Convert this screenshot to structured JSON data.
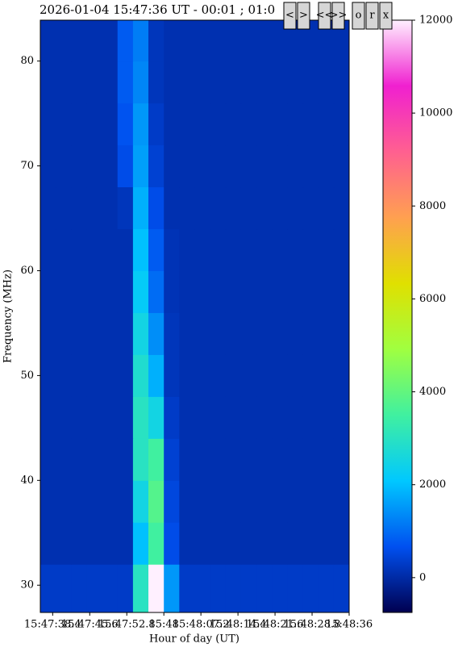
{
  "chart_data": {
    "type": "heatmap",
    "title": "2026-01-04 15:47:36 UT - 00:01 ; 01:0",
    "buttons": [
      "<",
      ">",
      "<<",
      ">>",
      "o",
      "r",
      "x"
    ],
    "xlabel": "Hour of day (UT)",
    "ylabel": "Frequency (MHz)",
    "xlim": [
      56856,
      56916
    ],
    "xticks": [
      {
        "value": 56858.4,
        "label": "15:47:38.4"
      },
      {
        "value": 56865.6,
        "label": "15:47:45.6"
      },
      {
        "value": 56872.8,
        "label": "15:47:52.8"
      },
      {
        "value": 56880,
        "label": "15:48"
      },
      {
        "value": 56887.2,
        "label": "15:48:07.2"
      },
      {
        "value": 56894.4,
        "label": "15:48:14.4"
      },
      {
        "value": 56901.6,
        "label": "15:48:21.6"
      },
      {
        "value": 56908.8,
        "label": "15:48:28.8"
      },
      {
        "value": 56916,
        "label": "15:48:36"
      }
    ],
    "ylim": [
      27.4,
      83.9
    ],
    "yticks": [
      30,
      40,
      50,
      60,
      70,
      80
    ],
    "x_edges": [
      56856,
      56859,
      56862,
      56865,
      56868,
      56871,
      56874,
      56877,
      56880,
      56883,
      56886,
      56889,
      56892,
      56895,
      56898,
      56901,
      56904,
      56907,
      56910,
      56913,
      56916
    ],
    "y_edges": [
      27.4,
      32,
      36,
      40,
      44,
      48,
      52,
      56,
      60,
      64,
      68,
      72,
      76,
      80,
      83.9
    ],
    "z": [
      [
        300,
        300,
        300,
        300,
        300,
        300,
        3000,
        12000,
        1500,
        300,
        300,
        300,
        300,
        300,
        300,
        300,
        300,
        300,
        300,
        300
      ],
      [
        100,
        100,
        100,
        100,
        100,
        100,
        2000,
        3500,
        600,
        100,
        100,
        100,
        100,
        100,
        100,
        100,
        100,
        100,
        100,
        100
      ],
      [
        100,
        100,
        100,
        100,
        100,
        100,
        2500,
        3800,
        500,
        100,
        100,
        100,
        100,
        100,
        100,
        100,
        100,
        100,
        100,
        100
      ],
      [
        100,
        100,
        100,
        100,
        100,
        100,
        3000,
        3500,
        400,
        100,
        100,
        100,
        100,
        100,
        100,
        100,
        100,
        100,
        100,
        100
      ],
      [
        100,
        100,
        100,
        100,
        100,
        100,
        3000,
        2500,
        300,
        100,
        100,
        100,
        100,
        100,
        100,
        100,
        100,
        100,
        100,
        100
      ],
      [
        100,
        100,
        100,
        100,
        100,
        100,
        2800,
        1800,
        200,
        100,
        100,
        100,
        100,
        100,
        100,
        100,
        100,
        100,
        100,
        100
      ],
      [
        100,
        100,
        100,
        100,
        100,
        100,
        2500,
        1400,
        200,
        100,
        100,
        100,
        100,
        100,
        100,
        100,
        100,
        100,
        100,
        100
      ],
      [
        100,
        100,
        100,
        100,
        100,
        100,
        2200,
        1000,
        150,
        100,
        100,
        100,
        100,
        100,
        100,
        100,
        100,
        100,
        100,
        100
      ],
      [
        100,
        100,
        100,
        100,
        100,
        100,
        2000,
        800,
        150,
        100,
        100,
        100,
        100,
        100,
        100,
        100,
        100,
        100,
        100,
        100
      ],
      [
        100,
        100,
        100,
        100,
        100,
        200,
        1800,
        600,
        100,
        100,
        100,
        100,
        100,
        100,
        100,
        100,
        100,
        100,
        100,
        100
      ],
      [
        100,
        100,
        100,
        100,
        100,
        600,
        1600,
        400,
        100,
        100,
        100,
        100,
        100,
        100,
        100,
        100,
        100,
        100,
        100,
        100
      ],
      [
        100,
        100,
        100,
        100,
        100,
        700,
        1500,
        300,
        100,
        100,
        100,
        100,
        100,
        100,
        100,
        100,
        100,
        100,
        100,
        100
      ],
      [
        100,
        100,
        100,
        100,
        100,
        800,
        1300,
        200,
        100,
        100,
        100,
        100,
        100,
        100,
        100,
        100,
        100,
        100,
        100,
        100
      ],
      [
        100,
        100,
        100,
        100,
        100,
        800,
        1200,
        200,
        100,
        100,
        100,
        100,
        100,
        100,
        100,
        100,
        100,
        100,
        100,
        100
      ]
    ],
    "clim": [
      -750,
      12000
    ],
    "cticks": [
      0,
      2000,
      4000,
      6000,
      8000,
      10000,
      12000
    ],
    "colormap": [
      "#000050",
      "#0050f0",
      "#00c8ff",
      "#40f0a0",
      "#a0ff40",
      "#e0e000",
      "#ffa050",
      "#ff6090",
      "#f020d0",
      "#fff0ff"
    ]
  }
}
